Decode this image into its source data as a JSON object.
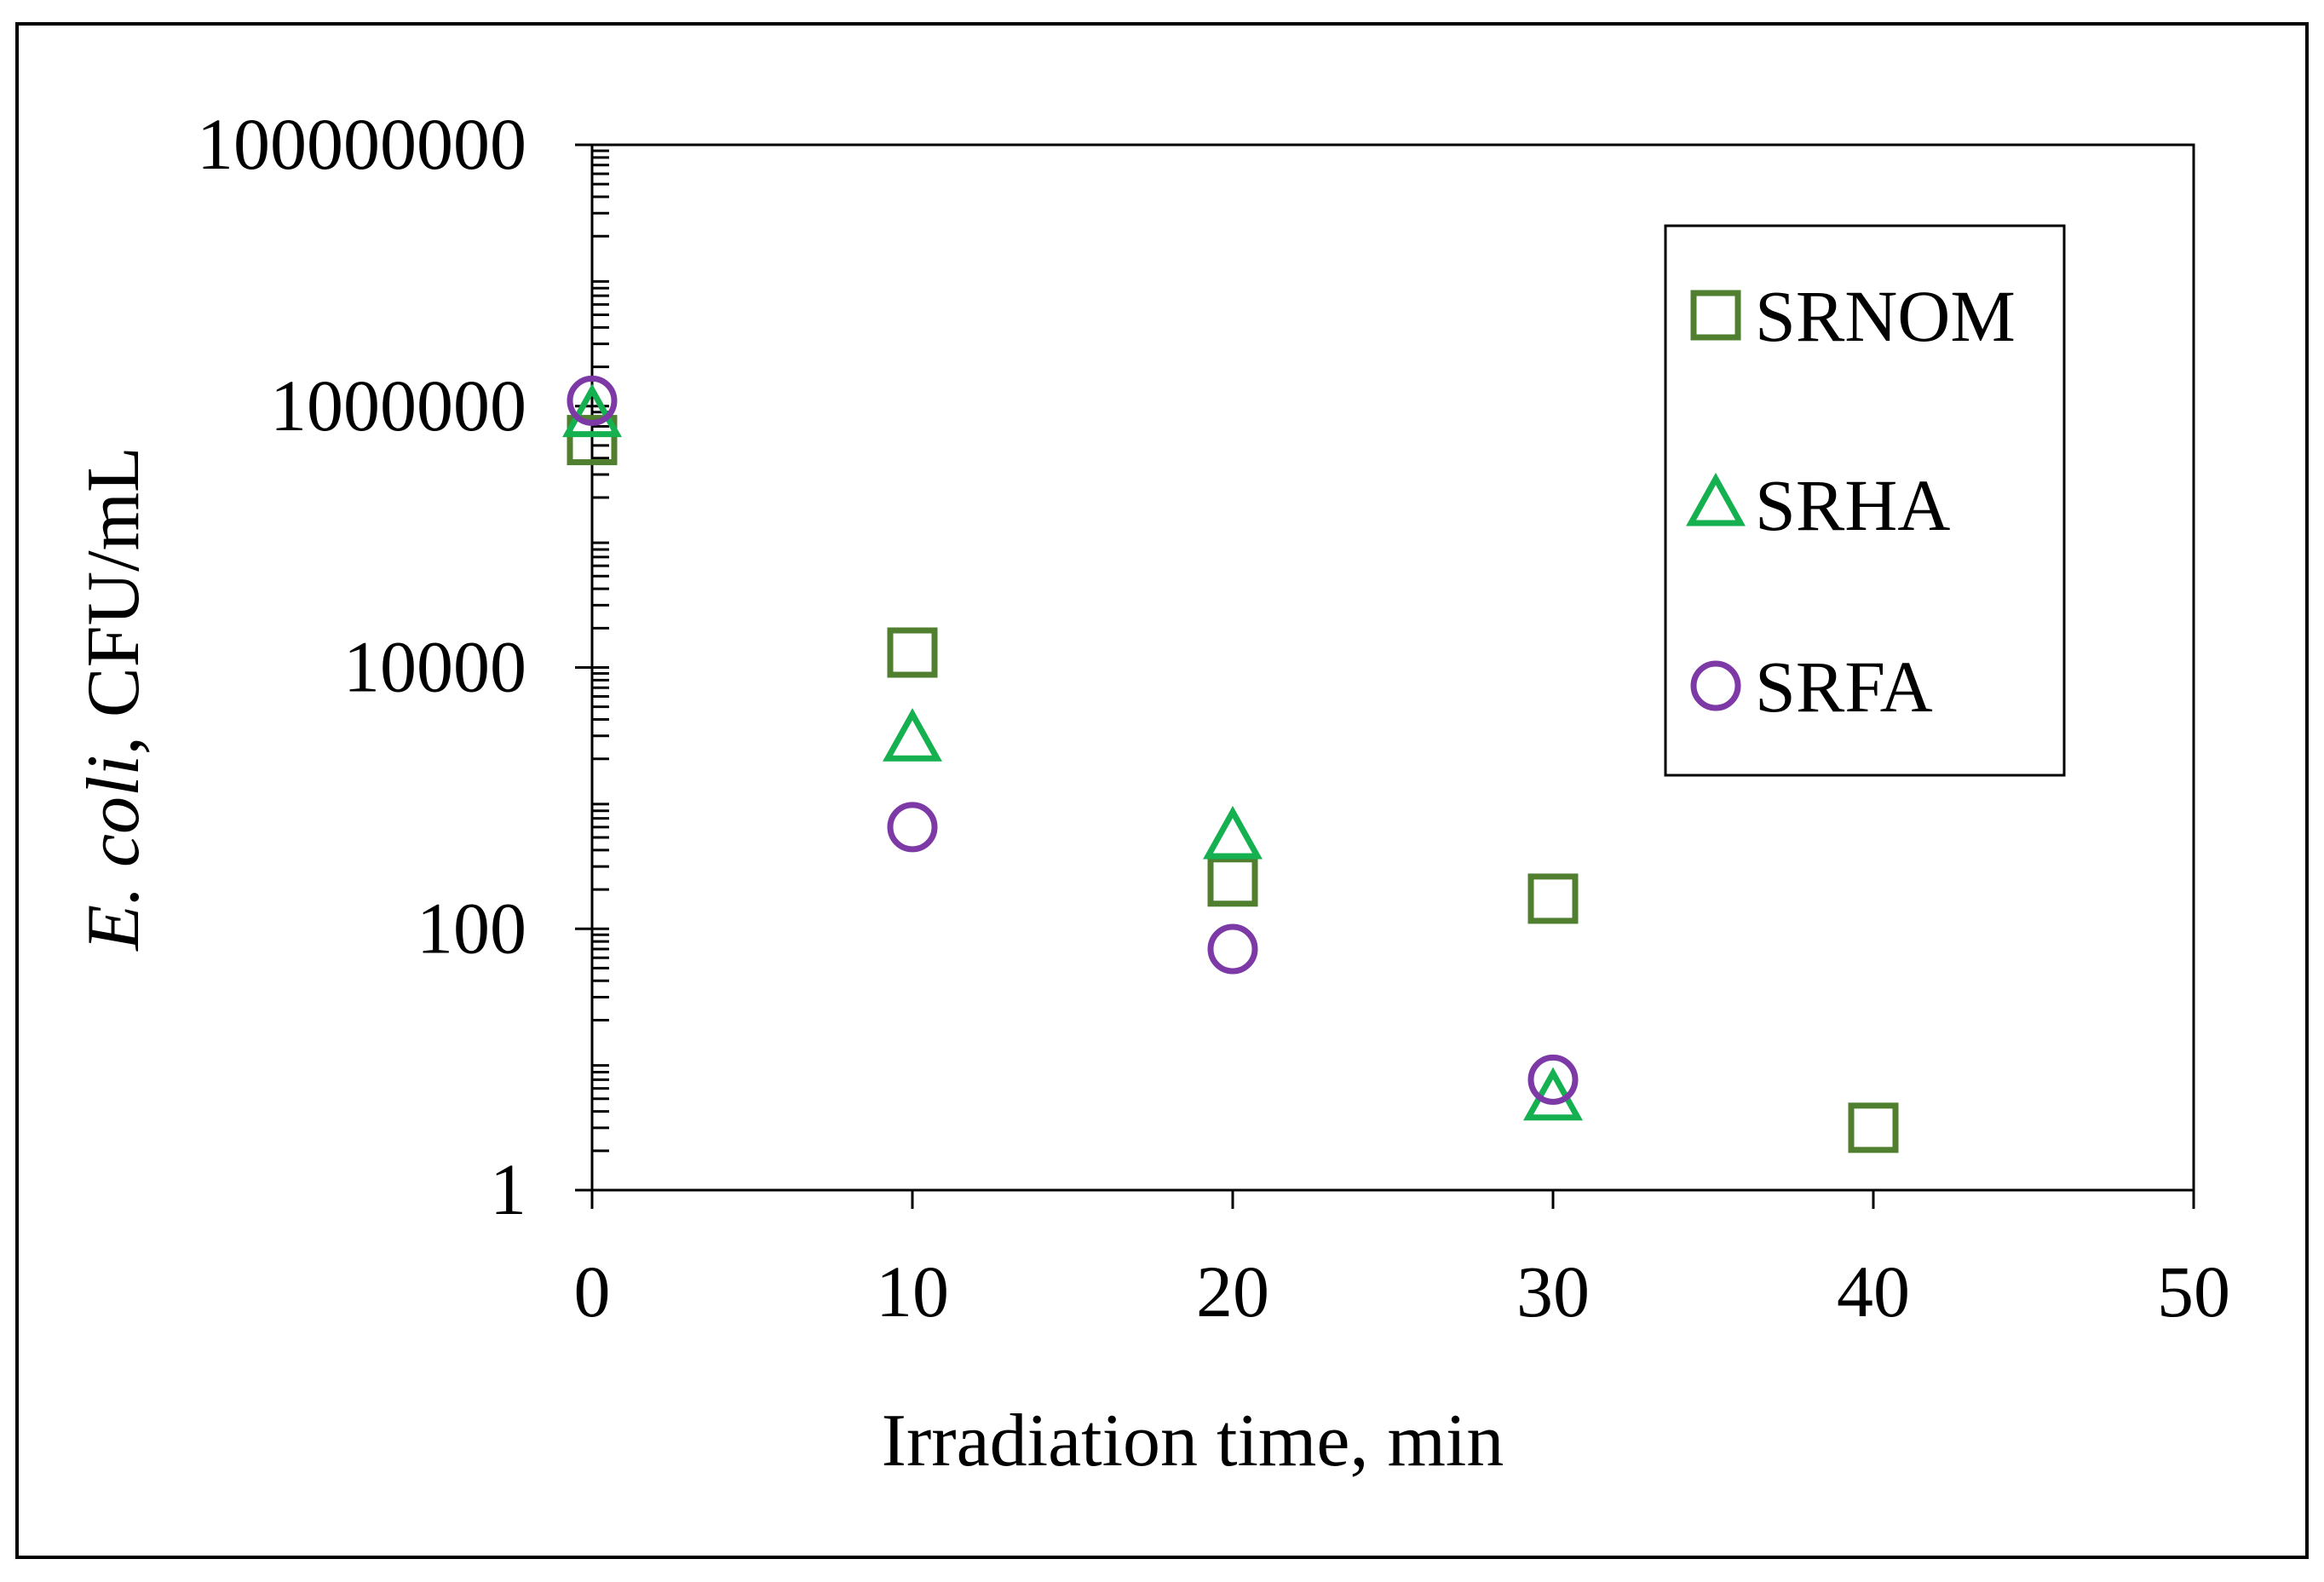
{
  "chart_data": {
    "type": "scatter",
    "title": "",
    "xlabel": "Irradiation time, min",
    "ylabel_italic": "E. coli",
    "ylabel_rest": ", CFU/mL",
    "yscale": "log",
    "xlim": [
      0,
      50
    ],
    "ylim": [
      1,
      100000000
    ],
    "x_ticks": [
      0,
      10,
      20,
      30,
      40,
      50
    ],
    "x_tick_labels": [
      "0",
      "10",
      "20",
      "30",
      "40",
      "50"
    ],
    "y_ticks": [
      1,
      100,
      10000,
      1000000,
      100000000
    ],
    "y_tick_labels": [
      "1",
      "100",
      "10000",
      "1000000",
      "100000000"
    ],
    "grid": false,
    "legend_position": "top-right",
    "series": [
      {
        "name": "SRNOM",
        "marker": "square",
        "color": "#4F7F2F",
        "x": [
          0,
          10,
          20,
          30,
          40
        ],
        "y": [
          550000,
          13000,
          230,
          170,
          3
        ]
      },
      {
        "name": "SRHA",
        "marker": "triangle",
        "color": "#15B04F",
        "x": [
          0,
          10,
          20,
          30
        ],
        "y": [
          850000,
          2800,
          500,
          5
        ]
      },
      {
        "name": "SRFA",
        "marker": "circle",
        "color": "#7D3AA6",
        "x": [
          0,
          10,
          20,
          30
        ],
        "y": [
          1100000,
          600,
          70,
          7
        ]
      }
    ]
  }
}
